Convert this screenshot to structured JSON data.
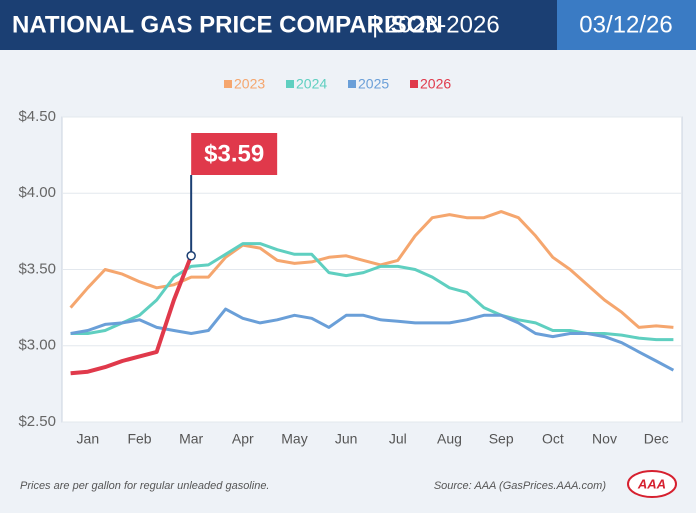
{
  "header": {
    "title": "NATIONAL GAS PRICE COMPARISON",
    "subtitle": "| 2023-2026",
    "date": "03/12/26"
  },
  "chart_data": {
    "type": "line",
    "categories": [
      null,
      "Jan",
      null,
      null,
      "Feb",
      null,
      null,
      "Mar",
      null,
      null,
      "Apr",
      null,
      null,
      "May",
      null,
      null,
      "Jun",
      null,
      null,
      "Jul",
      null,
      null,
      "Aug",
      null,
      null,
      "Sep",
      null,
      null,
      "Oct",
      null,
      null,
      "Nov",
      null,
      null,
      "Dec",
      null
    ],
    "ylim": [
      2.5,
      4.5
    ],
    "yticks": [
      {
        "value": 2.5,
        "label": "$2.50"
      },
      {
        "value": 3,
        "label": "$3.00"
      },
      {
        "value": 3.5,
        "label": "$3.50"
      },
      {
        "value": 4,
        "label": "$4.00"
      },
      {
        "value": 4.5,
        "label": "$4.50"
      }
    ],
    "grid": true,
    "legend": "top",
    "series": [
      {
        "name": "2023",
        "color": "#f5a66e",
        "values": [
          3.25,
          3.38,
          3.5,
          3.47,
          3.42,
          3.38,
          3.4,
          3.45,
          3.45,
          3.58,
          3.66,
          3.64,
          3.56,
          3.54,
          3.55,
          3.58,
          3.59,
          3.56,
          3.53,
          3.56,
          3.72,
          3.84,
          3.86,
          3.84,
          3.84,
          3.88,
          3.84,
          3.72,
          3.58,
          3.5,
          3.4,
          3.3,
          3.22,
          3.12,
          3.13,
          3.12
        ]
      },
      {
        "name": "2024",
        "color": "#5fcfc0",
        "values": [
          3.08,
          3.08,
          3.1,
          3.15,
          3.2,
          3.3,
          3.45,
          3.52,
          3.53,
          3.6,
          3.67,
          3.67,
          3.63,
          3.6,
          3.6,
          3.48,
          3.46,
          3.48,
          3.52,
          3.52,
          3.5,
          3.45,
          3.38,
          3.35,
          3.25,
          3.2,
          3.17,
          3.15,
          3.1,
          3.1,
          3.08,
          3.08,
          3.07,
          3.05,
          3.04,
          3.04
        ]
      },
      {
        "name": "2025",
        "color": "#6a9fd8",
        "values": [
          3.08,
          3.1,
          3.14,
          3.15,
          3.17,
          3.12,
          3.1,
          3.08,
          3.1,
          3.24,
          3.18,
          3.15,
          3.17,
          3.2,
          3.18,
          3.12,
          3.2,
          3.2,
          3.17,
          3.16,
          3.15,
          3.15,
          3.15,
          3.17,
          3.2,
          3.2,
          3.15,
          3.08,
          3.06,
          3.08,
          3.08,
          3.06,
          3.02,
          2.96,
          2.9,
          2.84
        ]
      },
      {
        "name": "2026",
        "color": "#e0394b",
        "values": [
          2.82,
          2.83,
          2.86,
          2.9,
          2.93,
          2.96,
          3.3,
          3.59,
          null,
          null,
          null,
          null,
          null,
          null,
          null,
          null,
          null,
          null,
          null,
          null,
          null,
          null,
          null,
          null,
          null,
          null,
          null,
          null,
          null,
          null,
          null,
          null,
          null,
          null,
          null,
          null
        ],
        "value_labels": [
          null,
          null,
          null,
          null,
          null,
          null,
          null,
          "$3.59",
          null,
          null,
          null,
          null,
          null,
          null,
          null,
          null,
          null,
          null,
          null,
          null,
          null,
          null,
          null,
          null,
          null,
          null,
          null,
          null,
          null,
          null,
          null,
          null,
          null,
          null,
          null,
          null
        ]
      }
    ]
  },
  "footer": {
    "note": "Prices are per gallon for regular unleaded gasoline.",
    "source": "Source: AAA (GasPrices.AAA.com)",
    "logo": "AAA"
  }
}
